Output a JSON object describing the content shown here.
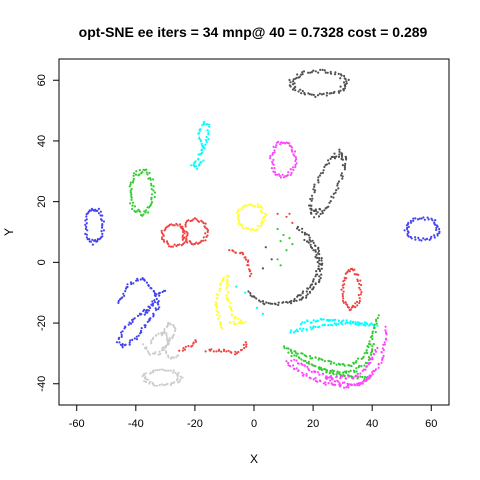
{
  "chart_data": {
    "type": "scatter",
    "title": "opt-SNE ee iters = 34 mnp@ 40 = 0.7328 cost = 0.289",
    "xlabel": "X",
    "ylabel": "Y",
    "xlim": [
      -66,
      66
    ],
    "ylim": [
      -47,
      67
    ],
    "xticks": [
      -60,
      -40,
      -20,
      0,
      20,
      40,
      60
    ],
    "yticks": [
      -40,
      -20,
      0,
      20,
      40,
      60
    ],
    "grid": false,
    "legend": "none",
    "series": [
      {
        "color": "#505050",
        "shape": "ring",
        "center": [
          22,
          59
        ],
        "size": [
          9,
          4
        ]
      },
      {
        "color": "#00ffff",
        "shape": "path",
        "points": [
          [
            -18,
            36
          ],
          [
            -16,
            40
          ],
          [
            -15,
            45
          ],
          [
            -17,
            46
          ],
          [
            -19,
            42
          ],
          [
            -17,
            38
          ],
          [
            -19,
            34
          ],
          [
            -21,
            32
          ],
          [
            -19,
            31
          ],
          [
            -17,
            34
          ]
        ]
      },
      {
        "color": "#ff44ff",
        "shape": "ring",
        "center": [
          10,
          34
        ],
        "size": [
          4,
          5.5
        ]
      },
      {
        "color": "#505050",
        "shape": "ring",
        "center": [
          25,
          26
        ],
        "size": [
          3.5,
          11
        ],
        "rotate": -25
      },
      {
        "color": "#33cc33",
        "shape": "ring",
        "center": [
          -38,
          23
        ],
        "size": [
          4,
          7
        ]
      },
      {
        "color": "#ffff33",
        "shape": "ring",
        "center": [
          -1,
          15
        ],
        "size": [
          4.5,
          4
        ]
      },
      {
        "color": "#4444ee",
        "shape": "ring",
        "center": [
          -54,
          12
        ],
        "size": [
          3,
          5.5
        ]
      },
      {
        "color": "#4444ee",
        "shape": "ring",
        "center": [
          57,
          11
        ],
        "size": [
          5.5,
          3.5
        ]
      },
      {
        "color": "#ee4444",
        "shape": "ring",
        "center": [
          -27,
          9
        ],
        "size": [
          4,
          3.5
        ]
      },
      {
        "color": "#ee4444",
        "shape": "ring",
        "center": [
          -20,
          10
        ],
        "size": [
          4,
          4
        ]
      },
      {
        "color": "#505050",
        "shape": "path",
        "points": [
          [
            -2,
            -10
          ],
          [
            2,
            -13
          ],
          [
            7,
            -14
          ],
          [
            13,
            -13
          ],
          [
            18,
            -11
          ],
          [
            22,
            -6
          ],
          [
            23,
            0
          ],
          [
            21,
            6
          ],
          [
            17,
            10
          ],
          [
            14,
            12
          ]
        ]
      },
      {
        "color": "#505050",
        "shape": "path",
        "points": [
          [
            14,
            -12
          ],
          [
            18,
            -9
          ],
          [
            21,
            -5
          ],
          [
            22,
            0
          ],
          [
            20,
            5
          ],
          [
            17,
            8
          ]
        ]
      },
      {
        "color": "#ee4444",
        "shape": "ring",
        "center": [
          33,
          -9
        ],
        "size": [
          3,
          6
        ]
      },
      {
        "color": "#ee4444",
        "shape": "path",
        "points": [
          [
            -8,
            4
          ],
          [
            -4,
            3
          ],
          [
            -2,
            0
          ],
          [
            -1,
            -5
          ]
        ]
      },
      {
        "color": "#ffff33",
        "shape": "path",
        "points": [
          [
            -11,
            -22
          ],
          [
            -13,
            -14
          ],
          [
            -11,
            -6
          ],
          [
            -9,
            -4
          ],
          [
            -9,
            -12
          ],
          [
            -7,
            -18
          ],
          [
            -3,
            -20
          ],
          [
            -9,
            -20
          ]
        ]
      },
      {
        "color": "#4444ee",
        "shape": "path",
        "points": [
          [
            -34,
            -14
          ],
          [
            -40,
            -18
          ],
          [
            -44,
            -22
          ],
          [
            -46,
            -26
          ],
          [
            -44,
            -28
          ],
          [
            -40,
            -25
          ],
          [
            -36,
            -20
          ],
          [
            -32,
            -14
          ],
          [
            -34,
            -9
          ],
          [
            -38,
            -5
          ],
          [
            -43,
            -8
          ],
          [
            -46,
            -14
          ]
        ]
      },
      {
        "color": "#4444ee",
        "shape": "path",
        "points": [
          [
            -30,
            -9
          ],
          [
            -33,
            -11
          ],
          [
            -35,
            -15
          ],
          [
            -37,
            -18
          ]
        ]
      },
      {
        "color": "#cccccc",
        "shape": "path",
        "points": [
          [
            -35,
            -27
          ],
          [
            -33,
            -24
          ],
          [
            -30,
            -23
          ],
          [
            -29,
            -27
          ],
          [
            -32,
            -30
          ],
          [
            -35,
            -30
          ],
          [
            -38,
            -27
          ]
        ]
      },
      {
        "color": "#cccccc",
        "shape": "path",
        "points": [
          [
            -31,
            -24
          ],
          [
            -29,
            -20
          ],
          [
            -27,
            -21
          ],
          [
            -27,
            -24
          ],
          [
            -29,
            -26
          ],
          [
            -30,
            -29
          ],
          [
            -28,
            -32
          ],
          [
            -25,
            -30
          ]
        ]
      },
      {
        "color": "#ee4444",
        "shape": "path",
        "points": [
          [
            -25,
            -29
          ],
          [
            -22,
            -28
          ],
          [
            -19,
            -25
          ]
        ]
      },
      {
        "color": "#ee4444",
        "shape": "path",
        "points": [
          [
            -16,
            -29
          ],
          [
            -11,
            -29
          ],
          [
            -6,
            -30
          ],
          [
            -3,
            -28
          ],
          [
            -3,
            -26
          ]
        ]
      },
      {
        "color": "#cccccc",
        "shape": "ring",
        "center": [
          -31,
          -38
        ],
        "size": [
          6,
          2.5
        ]
      },
      {
        "color": "#00ffff",
        "shape": "path",
        "points": [
          [
            12,
            -23
          ],
          [
            17,
            -22
          ],
          [
            23,
            -21
          ],
          [
            30,
            -20
          ],
          [
            37,
            -20
          ],
          [
            42,
            -21
          ]
        ]
      },
      {
        "color": "#00ffff",
        "shape": "path",
        "points": [
          [
            16,
            -20
          ],
          [
            22,
            -19
          ],
          [
            28,
            -19
          ],
          [
            34,
            -20
          ],
          [
            40,
            -21
          ]
        ]
      },
      {
        "color": "#33cc33",
        "shape": "path",
        "points": [
          [
            10,
            -28
          ],
          [
            18,
            -31
          ],
          [
            26,
            -33
          ],
          [
            33,
            -34
          ],
          [
            38,
            -30
          ],
          [
            41,
            -22
          ],
          [
            42,
            -17
          ]
        ]
      },
      {
        "color": "#33cc33",
        "shape": "path",
        "points": [
          [
            12,
            -30
          ],
          [
            20,
            -34
          ],
          [
            28,
            -36
          ],
          [
            34,
            -36
          ],
          [
            39,
            -32
          ],
          [
            41,
            -26
          ]
        ]
      },
      {
        "color": "#33cc33",
        "shape": "path",
        "points": [
          [
            22,
            -35
          ],
          [
            28,
            -37
          ],
          [
            34,
            -38
          ],
          [
            39,
            -38
          ]
        ]
      },
      {
        "color": "#ff44ff",
        "shape": "path",
        "points": [
          [
            11,
            -33
          ],
          [
            17,
            -37
          ],
          [
            24,
            -40
          ],
          [
            31,
            -41
          ],
          [
            37,
            -40
          ],
          [
            43,
            -33
          ],
          [
            45,
            -21
          ]
        ]
      },
      {
        "color": "#ff44ff",
        "shape": "path",
        "points": [
          [
            13,
            -32
          ],
          [
            20,
            -36
          ],
          [
            27,
            -38
          ],
          [
            34,
            -38
          ],
          [
            39,
            -34
          ],
          [
            42,
            -28
          ]
        ]
      },
      {
        "color": "#ff44ff",
        "shape": "path",
        "points": [
          [
            24,
            -38
          ],
          [
            30,
            -40
          ],
          [
            36,
            -40
          ],
          [
            40,
            -37
          ]
        ]
      },
      {
        "color": "#33cc33",
        "shape": "points",
        "points": [
          [
            8,
            11
          ],
          [
            10,
            9
          ],
          [
            9,
            7
          ],
          [
            11,
            4
          ],
          [
            12,
            8
          ],
          [
            8,
            1
          ],
          [
            9,
            -1
          ],
          [
            13,
            6
          ]
        ]
      },
      {
        "color": "#505050",
        "shape": "points",
        "points": [
          [
            4,
            5
          ],
          [
            6,
            1
          ],
          [
            3,
            -2
          ]
        ]
      },
      {
        "color": "#ee4444",
        "shape": "points",
        "points": [
          [
            8,
            16
          ],
          [
            11,
            15
          ],
          [
            13,
            13
          ],
          [
            12,
            16
          ]
        ]
      },
      {
        "color": "#00ffff",
        "shape": "points",
        "points": [
          [
            -6,
            -8
          ],
          [
            -3,
            -10
          ],
          [
            1,
            -15
          ],
          [
            3,
            -17
          ]
        ]
      }
    ]
  }
}
